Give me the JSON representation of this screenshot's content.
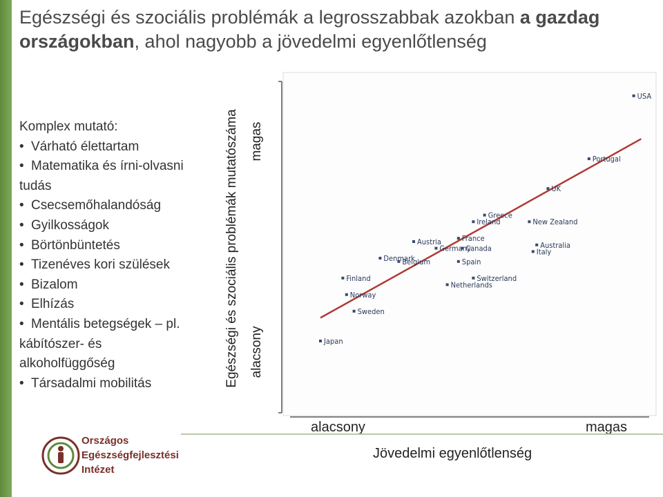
{
  "title": {
    "part1": "Egészségi és szociális problémák a legrosszabbak azokban ",
    "part2": "a gazdag",
    "part3": "országokban",
    "part4": ", ahol nagyobb a jövedelmi egyenlőtlenség"
  },
  "left_list": {
    "heading": "Komplex mutató:",
    "items": [
      "Várható élettartam",
      "Matematika és írni-olvasni",
      "tudás",
      "Csecsemőhalandóság",
      "Gyilkosságok",
      "Börtönbüntetés",
      "Tizenéves kori szülések",
      "Bizalom",
      "Elhízás",
      "Mentális betegségek – pl.",
      "kábítószer- és",
      "alkoholfüggőség",
      "Társadalmi mobilitás"
    ]
  },
  "colors": {
    "sidebar": "#6b9447",
    "trendline": "#b03a33",
    "points": "#3a4a6a",
    "labels": "#2a3a5a"
  },
  "org": {
    "line1": "Országos",
    "line2": "Egészségfejlesztési",
    "line3": "Intézet"
  },
  "chart_data": {
    "type": "scatter",
    "xlabel": "Jövedelmi egyenlőtlenség",
    "ylabel": "Egészségi és szociális problémák mutatószáma",
    "x_low_label": "alacsony",
    "x_high_label": "magas",
    "y_low_label": "alacsony",
    "y_high_label": "magas",
    "xlim": [
      0,
      100
    ],
    "ylim": [
      0,
      100
    ],
    "grid": false,
    "points": [
      {
        "label": "USA",
        "x": 94,
        "y": 94
      },
      {
        "label": "Portugal",
        "x": 82,
        "y": 75
      },
      {
        "label": "UK",
        "x": 71,
        "y": 66
      },
      {
        "label": "Greece",
        "x": 54,
        "y": 58
      },
      {
        "label": "New Zealand",
        "x": 66,
        "y": 56
      },
      {
        "label": "Ireland",
        "x": 51,
        "y": 56
      },
      {
        "label": "France",
        "x": 47,
        "y": 51
      },
      {
        "label": "Austria",
        "x": 35,
        "y": 50
      },
      {
        "label": "Australia",
        "x": 68,
        "y": 49
      },
      {
        "label": "Germany",
        "x": 41,
        "y": 48
      },
      {
        "label": "Canada",
        "x": 48,
        "y": 48
      },
      {
        "label": "Italy",
        "x": 67,
        "y": 47
      },
      {
        "label": "Denmark",
        "x": 26,
        "y": 45
      },
      {
        "label": "Spain",
        "x": 47,
        "y": 44
      },
      {
        "label": "Belgium",
        "x": 31,
        "y": 44
      },
      {
        "label": "Finland",
        "x": 16,
        "y": 39
      },
      {
        "label": "Switzerland",
        "x": 51,
        "y": 39
      },
      {
        "label": "Netherlands",
        "x": 44,
        "y": 37
      },
      {
        "label": "Norway",
        "x": 17,
        "y": 34
      },
      {
        "label": "Sweden",
        "x": 19,
        "y": 29
      },
      {
        "label": "Japan",
        "x": 10,
        "y": 20
      }
    ],
    "trendline": {
      "x": [
        10,
        96
      ],
      "y": [
        27,
        81
      ]
    }
  }
}
